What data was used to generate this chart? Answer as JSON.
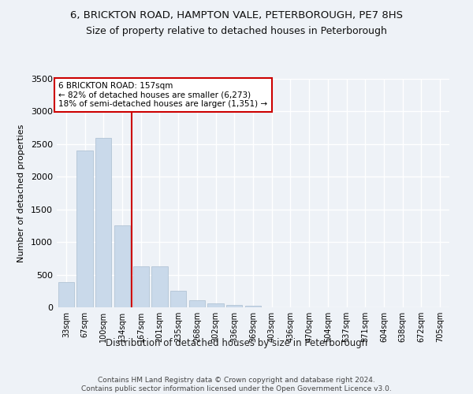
{
  "title1": "6, BRICKTON ROAD, HAMPTON VALE, PETERBOROUGH, PE7 8HS",
  "title2": "Size of property relative to detached houses in Peterborough",
  "xlabel": "Distribution of detached houses by size in Peterborough",
  "ylabel": "Number of detached properties",
  "footer1": "Contains HM Land Registry data © Crown copyright and database right 2024.",
  "footer2": "Contains public sector information licensed under the Open Government Licence v3.0.",
  "categories": [
    "33sqm",
    "67sqm",
    "100sqm",
    "134sqm",
    "167sqm",
    "201sqm",
    "235sqm",
    "268sqm",
    "302sqm",
    "336sqm",
    "369sqm",
    "403sqm",
    "436sqm",
    "470sqm",
    "504sqm",
    "537sqm",
    "571sqm",
    "604sqm",
    "638sqm",
    "672sqm",
    "705sqm"
  ],
  "values": [
    390,
    2400,
    2600,
    1250,
    630,
    630,
    250,
    110,
    60,
    40,
    20,
    5,
    0,
    0,
    0,
    0,
    0,
    0,
    0,
    0,
    0
  ],
  "bar_color": "#c9d9ea",
  "bar_edge_color": "#aabdcf",
  "vline_color": "#cc0000",
  "annotation_title": "6 BRICKTON ROAD: 157sqm",
  "annotation_line1": "← 82% of detached houses are smaller (6,273)",
  "annotation_line2": "18% of semi-detached houses are larger (1,351) →",
  "annotation_box_color": "#cc0000",
  "ylim": [
    0,
    3500
  ],
  "yticks": [
    0,
    500,
    1000,
    1500,
    2000,
    2500,
    3000,
    3500
  ],
  "background_color": "#eef2f7",
  "plot_bg_color": "#eef2f7",
  "grid_color": "#ffffff",
  "title_fontsize": 9.5,
  "subtitle_fontsize": 9,
  "title_fontweight": "normal"
}
